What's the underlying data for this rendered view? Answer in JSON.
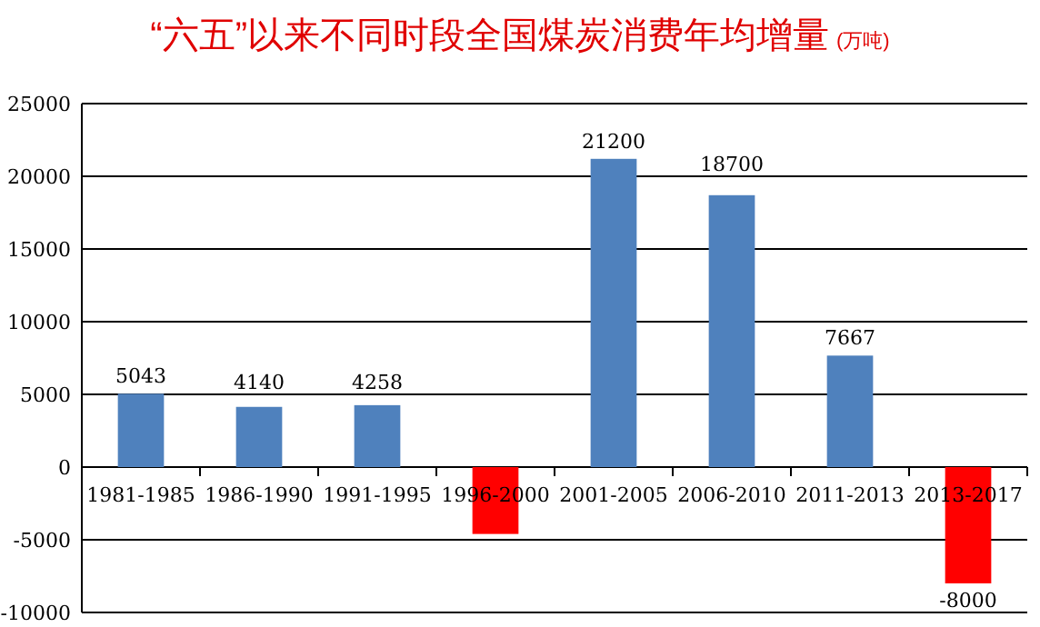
{
  "chart_data": {
    "type": "bar",
    "title": "“六五”以来不同时段全国煤炭消费年均增量",
    "subtitle": "(万吨)",
    "categories": [
      "1981-1985",
      "1986-1990",
      "1991-1995",
      "1996-2000",
      "2001-2005",
      "2006-2010",
      "2011-2013",
      "2013-2017"
    ],
    "values": [
      5043,
      4140,
      4258,
      -4600,
      21200,
      18700,
      7667,
      -8000
    ],
    "colors": [
      "#4f81bd",
      "#4f81bd",
      "#4f81bd",
      "#ff0000",
      "#4f81bd",
      "#4f81bd",
      "#4f81bd",
      "#ff0000"
    ],
    "value_labels": [
      "5043",
      "4140",
      "4258",
      null,
      "21200",
      "18700",
      "7667",
      "-8000"
    ],
    "ylim": [
      -10000,
      25000
    ],
    "yticks": [
      -10000,
      -5000,
      0,
      5000,
      10000,
      15000,
      20000,
      25000
    ],
    "grid": "y"
  }
}
